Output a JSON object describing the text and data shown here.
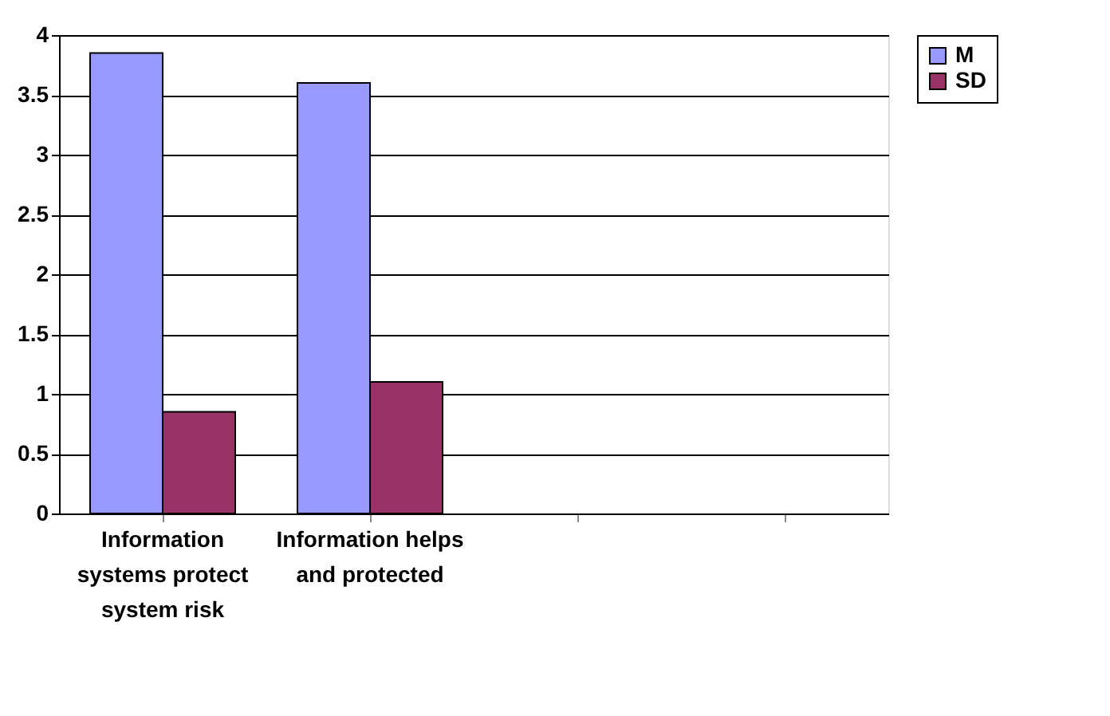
{
  "chart_data": {
    "type": "bar",
    "categories": [
      "Information systems protect system risk",
      "Information helps and  protected",
      null,
      null
    ],
    "series": [
      {
        "name": "M",
        "color": "#9999ff",
        "values": [
          3.85,
          3.6,
          null,
          null
        ]
      },
      {
        "name": "SD",
        "color": "#993366",
        "values": [
          0.85,
          1.1,
          null,
          null
        ]
      }
    ],
    "ylim": [
      0,
      4
    ],
    "yticks": [
      0,
      0.5,
      1,
      1.5,
      2,
      2.5,
      3,
      3.5,
      4
    ],
    "grid": "y",
    "legend": "right"
  }
}
